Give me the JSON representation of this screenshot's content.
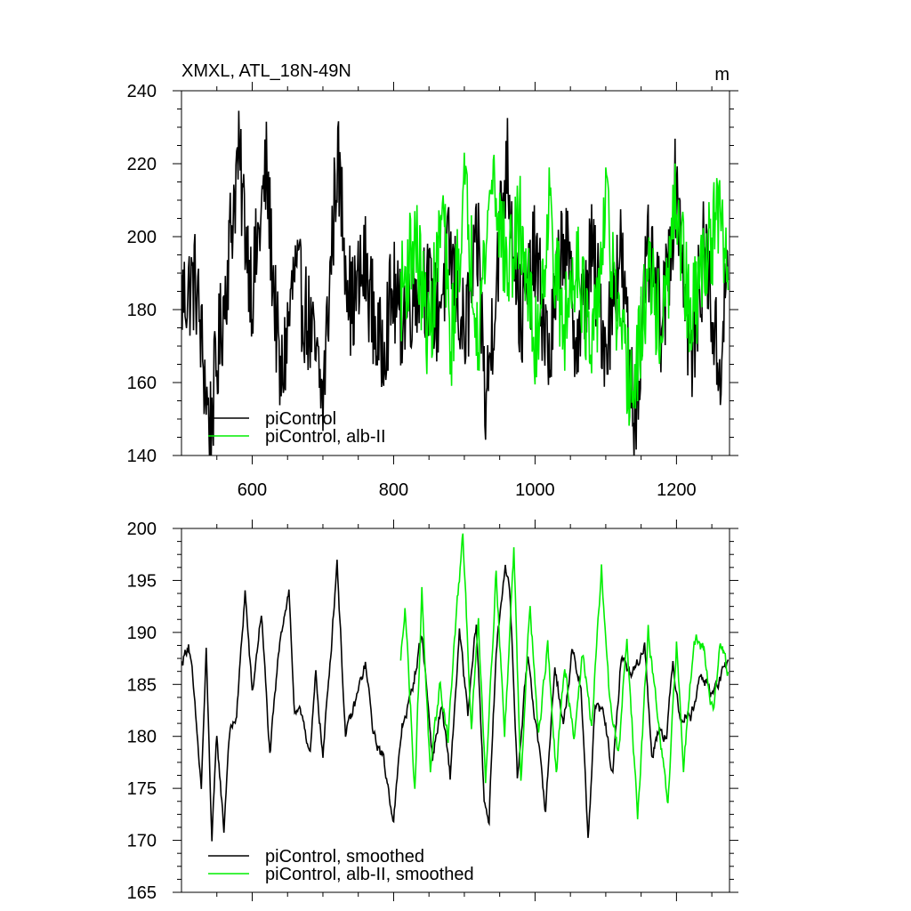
{
  "chart_data": [
    {
      "type": "line",
      "title": "XMXL, ATL_18N-49N",
      "units": "m",
      "xlim": [
        500,
        1275
      ],
      "ylim": [
        140,
        240
      ],
      "xticks": [
        600,
        800,
        1000,
        1200
      ],
      "yticks": [
        140,
        160,
        180,
        200,
        220,
        240
      ],
      "x_tick_labels_shown": true,
      "legend_position": "bottom-left",
      "series": [
        {
          "name": "piControl",
          "color": "#000000",
          "x_range": [
            500,
            1273
          ],
          "points": [
            [
              500,
              183
            ],
            [
              520,
              188
            ],
            [
              540,
              147
            ],
            [
              560,
              182
            ],
            [
              580,
              222
            ],
            [
              600,
              185
            ],
            [
              620,
              218
            ],
            [
              640,
              158
            ],
            [
              660,
              190
            ],
            [
              680,
              176
            ],
            [
              700,
              155
            ],
            [
              720,
              222
            ],
            [
              740,
              180
            ],
            [
              760,
              192
            ],
            [
              780,
              168
            ],
            [
              800,
              185
            ],
            [
              808,
              177
            ],
            [
              840,
              190
            ],
            [
              860,
              178
            ],
            [
              880,
              196
            ],
            [
              900,
              172
            ],
            [
              920,
              198
            ],
            [
              930,
              152
            ],
            [
              950,
              201
            ],
            [
              960,
              222
            ],
            [
              980,
              176
            ],
            [
              1000,
              195
            ],
            [
              1020,
              166
            ],
            [
              1040,
              202
            ],
            [
              1060,
              170
            ],
            [
              1080,
              196
            ],
            [
              1100,
              170
            ],
            [
              1120,
              198
            ],
            [
              1140,
              150
            ],
            [
              1160,
              194
            ],
            [
              1180,
              175
            ],
            [
              1200,
              216
            ],
            [
              1220,
              165
            ],
            [
              1240,
              198
            ],
            [
              1260,
              162
            ],
            [
              1273,
              191
            ]
          ],
          "fluctuation": 15
        },
        {
          "name": "piControl, alb-II",
          "color": "#00ee00",
          "x_range": [
            810,
            1273
          ],
          "points": [
            [
              810,
              184
            ],
            [
              830,
              200
            ],
            [
              850,
              172
            ],
            [
              870,
              208
            ],
            [
              880,
              168
            ],
            [
              900,
              213
            ],
            [
              920,
              175
            ],
            [
              940,
              219
            ],
            [
              960,
              190
            ],
            [
              980,
              204
            ],
            [
              1000,
              168
            ],
            [
              1020,
              208
            ],
            [
              1040,
              173
            ],
            [
              1060,
              197
            ],
            [
              1080,
              164
            ],
            [
              1100,
              209
            ],
            [
              1120,
              170
            ],
            [
              1140,
              157
            ],
            [
              1160,
              190
            ],
            [
              1180,
              173
            ],
            [
              1200,
              210
            ],
            [
              1220,
              175
            ],
            [
              1240,
              195
            ],
            [
              1260,
              205
            ],
            [
              1273,
              190
            ]
          ],
          "fluctuation": 14
        }
      ]
    },
    {
      "type": "line",
      "title": "",
      "xlim": [
        500,
        1275
      ],
      "ylim": [
        165,
        200
      ],
      "xticks": [
        600,
        800,
        1000,
        1200
      ],
      "yticks": [
        165,
        170,
        175,
        180,
        185,
        190,
        195,
        200
      ],
      "x_tick_labels_shown": false,
      "legend_position": "bottom-left",
      "series": [
        {
          "name": "piControl, smoothed",
          "color": "#000000",
          "x_range": [
            500,
            1273
          ],
          "points": [
            [
              500,
              187
            ],
            [
              510,
              189
            ],
            [
              515,
              186
            ],
            [
              528,
              175
            ],
            [
              535,
              188
            ],
            [
              543,
              170
            ],
            [
              550,
              180
            ],
            [
              560,
              171
            ],
            [
              567,
              180
            ],
            [
              578,
              182
            ],
            [
              590,
              194
            ],
            [
              600,
              184
            ],
            [
              613,
              192
            ],
            [
              625,
              178
            ],
            [
              640,
              190
            ],
            [
              652,
              194
            ],
            [
              660,
              182
            ],
            [
              672,
              182
            ],
            [
              682,
              178
            ],
            [
              690,
              186
            ],
            [
              700,
              178
            ],
            [
              712,
              189
            ],
            [
              720,
              197
            ],
            [
              732,
              180
            ],
            [
              745,
              183
            ],
            [
              760,
              187
            ],
            [
              772,
              180
            ],
            [
              785,
              178
            ],
            [
              800,
              172
            ],
            [
              812,
              181
            ],
            [
              825,
              184
            ],
            [
              840,
              190
            ],
            [
              855,
              178
            ],
            [
              868,
              183
            ],
            [
              880,
              176
            ],
            [
              893,
              190
            ],
            [
              905,
              182
            ],
            [
              917,
              191
            ],
            [
              928,
              174
            ],
            [
              935,
              172
            ],
            [
              945,
              188
            ],
            [
              958,
              197
            ],
            [
              965,
              193
            ],
            [
              975,
              176
            ],
            [
              990,
              188
            ],
            [
              1003,
              180
            ],
            [
              1015,
              173
            ],
            [
              1028,
              187
            ],
            [
              1040,
              181
            ],
            [
              1052,
              188
            ],
            [
              1065,
              185
            ],
            [
              1075,
              170
            ],
            [
              1085,
              183
            ],
            [
              1098,
              182
            ],
            [
              1110,
              176
            ],
            [
              1122,
              188
            ],
            [
              1133,
              186
            ],
            [
              1145,
              187
            ],
            [
              1155,
              189
            ],
            [
              1165,
              178
            ],
            [
              1175,
              181
            ],
            [
              1186,
              180
            ],
            [
              1195,
              187
            ],
            [
              1205,
              182
            ],
            [
              1220,
              182
            ],
            [
              1235,
              186
            ],
            [
              1250,
              184
            ],
            [
              1273,
              187
            ]
          ],
          "fluctuation": 1.2
        },
        {
          "name": "piControl, alb-II, smoothed",
          "color": "#00ee00",
          "x_range": [
            810,
            1273
          ],
          "points": [
            [
              810,
              187
            ],
            [
              816,
              193
            ],
            [
              830,
              175
            ],
            [
              840,
              194
            ],
            [
              852,
              176
            ],
            [
              865,
              185
            ],
            [
              877,
              180
            ],
            [
              890,
              193
            ],
            [
              898,
              199
            ],
            [
              910,
              181
            ],
            [
              920,
              191
            ],
            [
              930,
              176
            ],
            [
              945,
              196
            ],
            [
              957,
              180
            ],
            [
              970,
              198
            ],
            [
              980,
              176
            ],
            [
              993,
              193
            ],
            [
              1005,
              180
            ],
            [
              1018,
              189
            ],
            [
              1030,
              176
            ],
            [
              1042,
              187
            ],
            [
              1055,
              180
            ],
            [
              1067,
              188
            ],
            [
              1080,
              181
            ],
            [
              1094,
              196
            ],
            [
              1105,
              184
            ],
            [
              1118,
              178
            ],
            [
              1130,
              190
            ],
            [
              1145,
              172
            ],
            [
              1160,
              190
            ],
            [
              1175,
              181
            ],
            [
              1188,
              173
            ],
            [
              1200,
              189
            ],
            [
              1210,
              177
            ],
            [
              1225,
              190
            ],
            [
              1240,
              188
            ],
            [
              1252,
              182
            ],
            [
              1262,
              189
            ],
            [
              1273,
              186
            ]
          ],
          "fluctuation": 1.4
        }
      ]
    }
  ]
}
